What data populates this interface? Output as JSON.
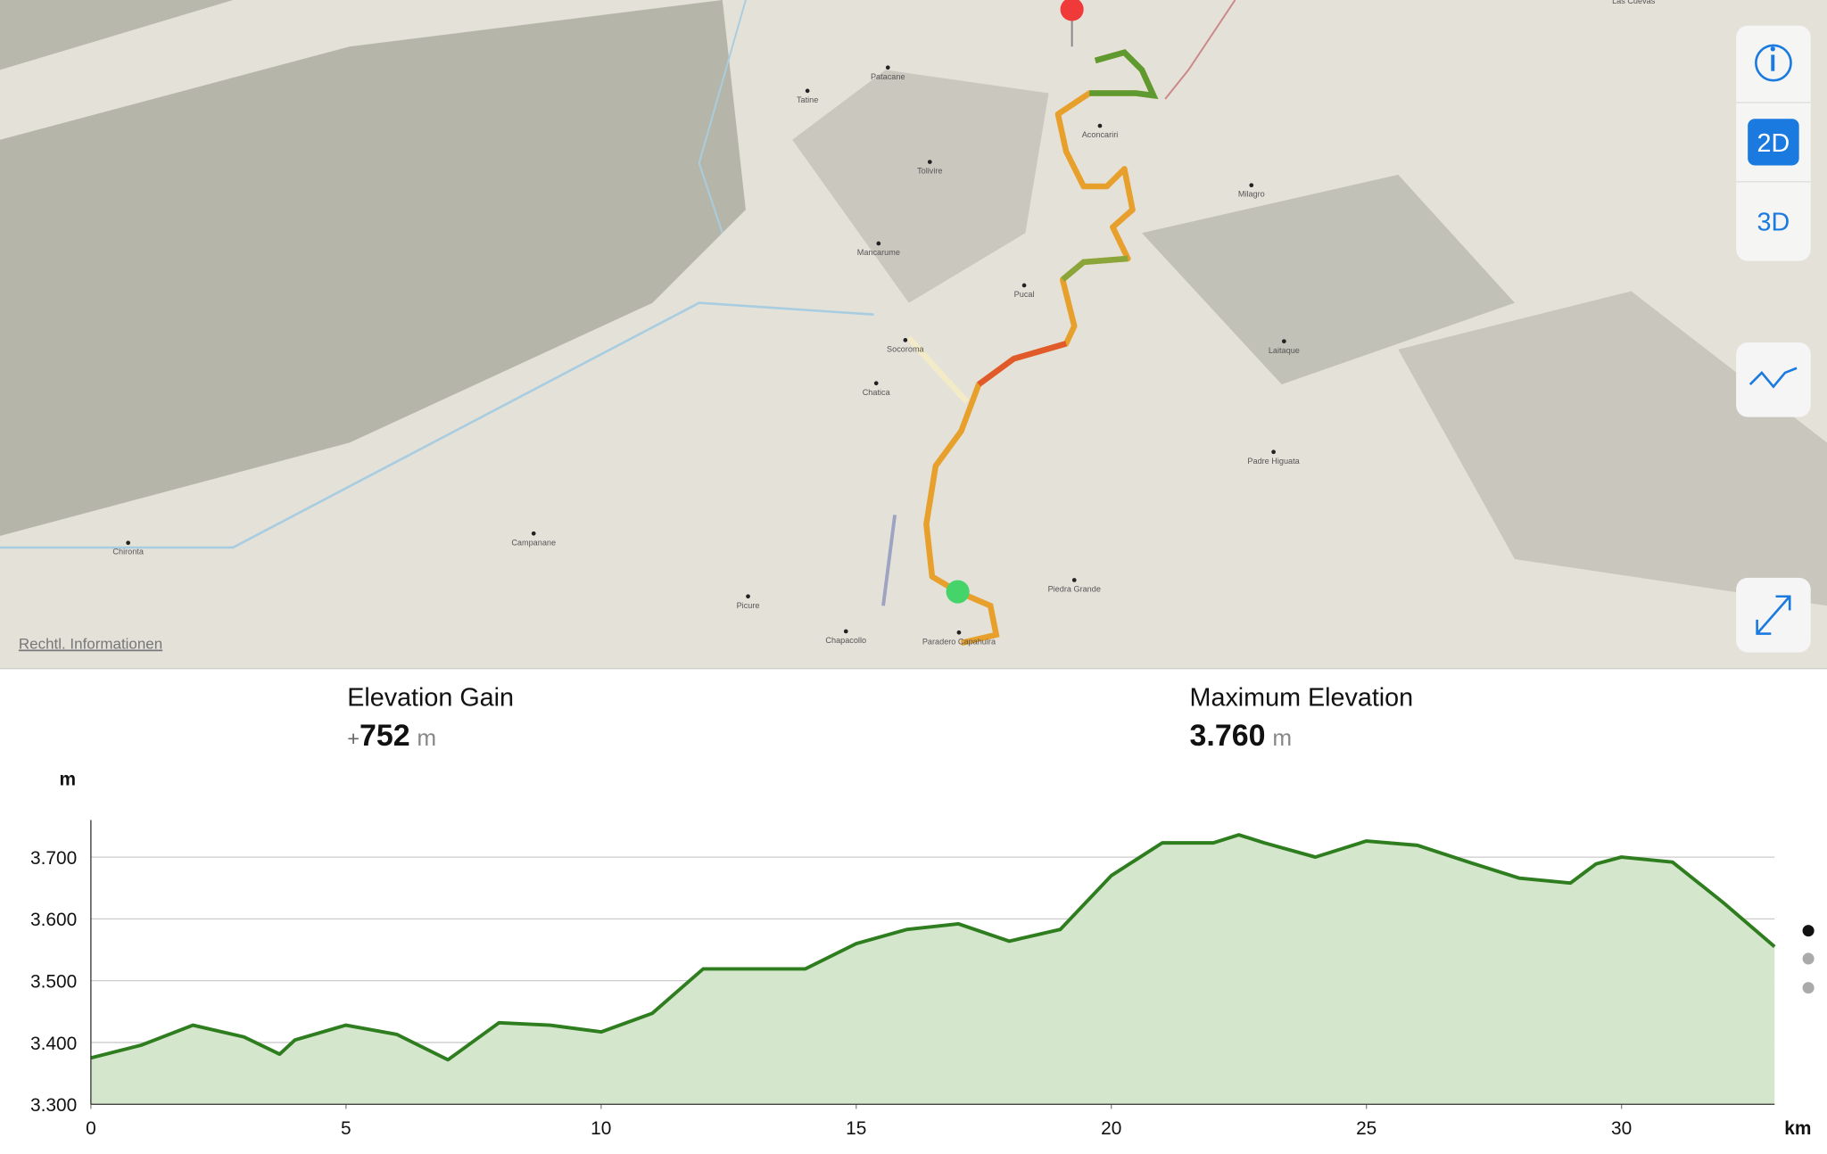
{
  "map": {
    "labels": [
      "Tatine",
      "Patacane",
      "Aconcariri",
      "Tolivire",
      "Milagro",
      "Mancarume",
      "Pucal",
      "Socoroma",
      "Chatica",
      "Laitaque",
      "Padre Higuata",
      "Chironta",
      "Campanane",
      "Picure",
      "Chapacollo",
      "Paradero Capahuira",
      "Piedra Grande",
      "Las Cuevas"
    ],
    "legal": "Rechtl. Informationen",
    "buttons": [
      "2D",
      "3D"
    ]
  },
  "stats": [
    {
      "label": "Elevation Gain",
      "sign": "+",
      "value": "752",
      "unit": "m"
    },
    {
      "label": "Maximum Elevation",
      "value": "3.760",
      "unit": "m"
    }
  ],
  "chart_data": {
    "type": "area",
    "y_label": "m",
    "x_label": "km",
    "color": "#2e7d1e",
    "fill": "#d4e6cc",
    "x": [
      0,
      1,
      2,
      3,
      3.7,
      4,
      5,
      6,
      7,
      8,
      9,
      10,
      11,
      12,
      13,
      14,
      15,
      16,
      17,
      18,
      19,
      20,
      21,
      22,
      22.5,
      23,
      24,
      25,
      26,
      27,
      28,
      29,
      29.5,
      30,
      31,
      32,
      33
    ],
    "values": [
      3375,
      3396,
      3428,
      3409,
      3381,
      3404,
      3428,
      3413,
      3372,
      3432,
      3428,
      3417,
      3447,
      3519,
      3519,
      3519,
      3560,
      3583,
      3592,
      3564,
      3583,
      3670,
      3723,
      3723,
      3736,
      3723,
      3700,
      3726,
      3719,
      3692,
      3666,
      3658,
      3689,
      3700,
      3692,
      3626,
      3555
    ],
    "xlim": [
      0,
      33
    ],
    "ylim": [
      3300,
      3760
    ],
    "xticks": [
      0,
      5,
      10,
      15,
      20,
      25,
      30
    ],
    "yticks": [
      {
        "value": 3300,
        "label": "3.300"
      },
      {
        "value": 3400,
        "label": "3.400"
      },
      {
        "value": 3500,
        "label": "3.500"
      },
      {
        "value": 3600,
        "label": "3.600"
      },
      {
        "value": 3700,
        "label": "3.700"
      }
    ],
    "grid": true
  }
}
